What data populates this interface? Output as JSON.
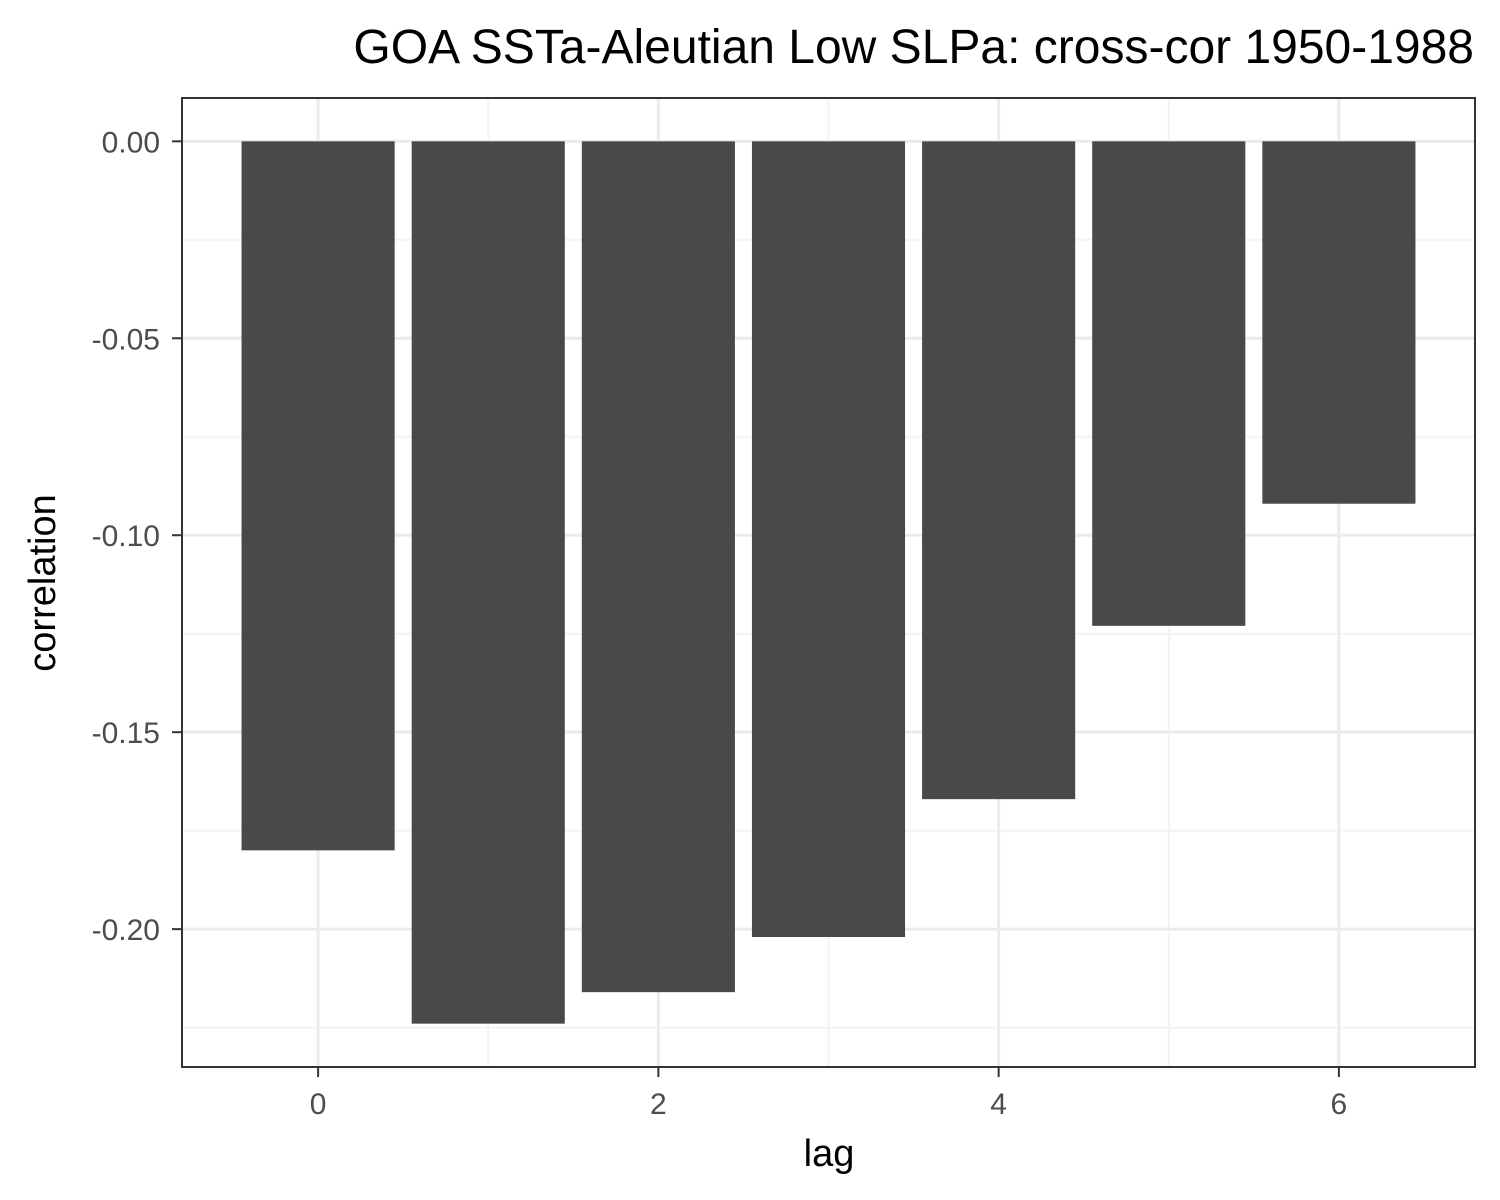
{
  "chart_data": {
    "type": "bar",
    "title": "GOA SSTa-Aleutian Low SLPa: cross-cor 1950-1988",
    "xlabel": "lag",
    "ylabel": "correlation",
    "x": [
      0,
      1,
      2,
      3,
      4,
      5,
      6
    ],
    "values": [
      -0.18,
      -0.224,
      -0.216,
      -0.202,
      -0.167,
      -0.123,
      -0.092
    ],
    "xlim": [
      -0.8,
      6.8
    ],
    "ylim": [
      -0.235,
      0.011
    ],
    "x_ticks": [
      0,
      2,
      4,
      6
    ],
    "x_tick_labels": [
      "0",
      "2",
      "4",
      "6"
    ],
    "y_ticks": [
      0,
      -0.05,
      -0.1,
      -0.15,
      -0.2
    ],
    "y_tick_labels": [
      "0.00",
      "-0.05",
      "-0.10",
      "-0.15",
      "-0.20"
    ],
    "grid": true,
    "legend": "none",
    "colors": {
      "bar": "#494949",
      "grid_major": "#ebebeb",
      "grid_minor": "#f3f3f3",
      "panel_border": "#333333",
      "tick_text": "#4d4d4d"
    }
  }
}
